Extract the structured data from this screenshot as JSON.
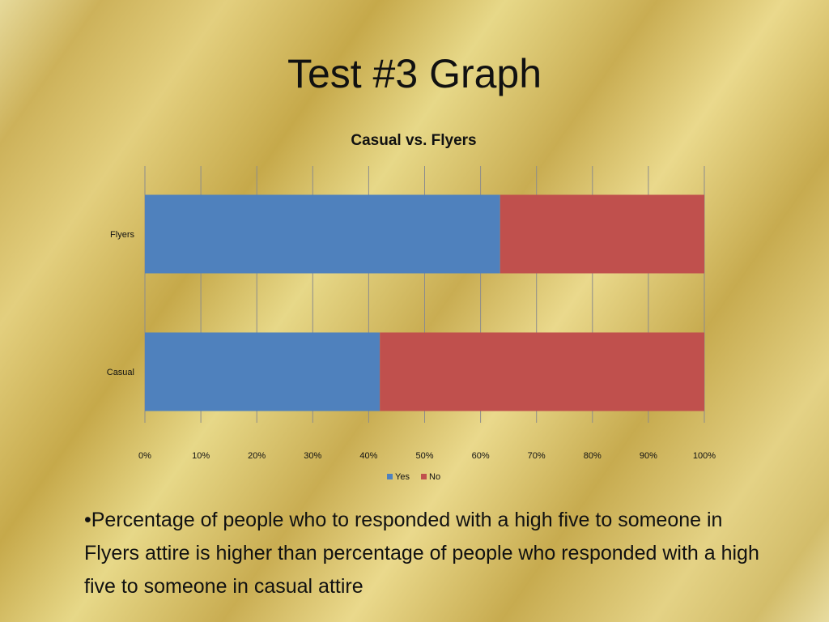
{
  "slide": {
    "title": "Test #3 Graph",
    "caption": "•Percentage of people who to responded with a high five to someone in Flyers attire is higher than percentage of people who responded with a high five to someone in casual attire"
  },
  "chart_data": {
    "type": "bar",
    "orientation": "horizontal",
    "stacked": "percent",
    "title": "Casual vs. Flyers",
    "categories": [
      "Flyers",
      "Casual"
    ],
    "series": [
      {
        "name": "Yes",
        "values": [
          63.5,
          42
        ],
        "color": "#4f81bd"
      },
      {
        "name": "No",
        "values": [
          36.5,
          58
        ],
        "color": "#c0504d"
      }
    ],
    "xlim": [
      0,
      100
    ],
    "xticks": [
      "0%",
      "10%",
      "20%",
      "30%",
      "40%",
      "50%",
      "60%",
      "70%",
      "80%",
      "90%",
      "100%"
    ],
    "grid": true,
    "legend": "bottom"
  }
}
